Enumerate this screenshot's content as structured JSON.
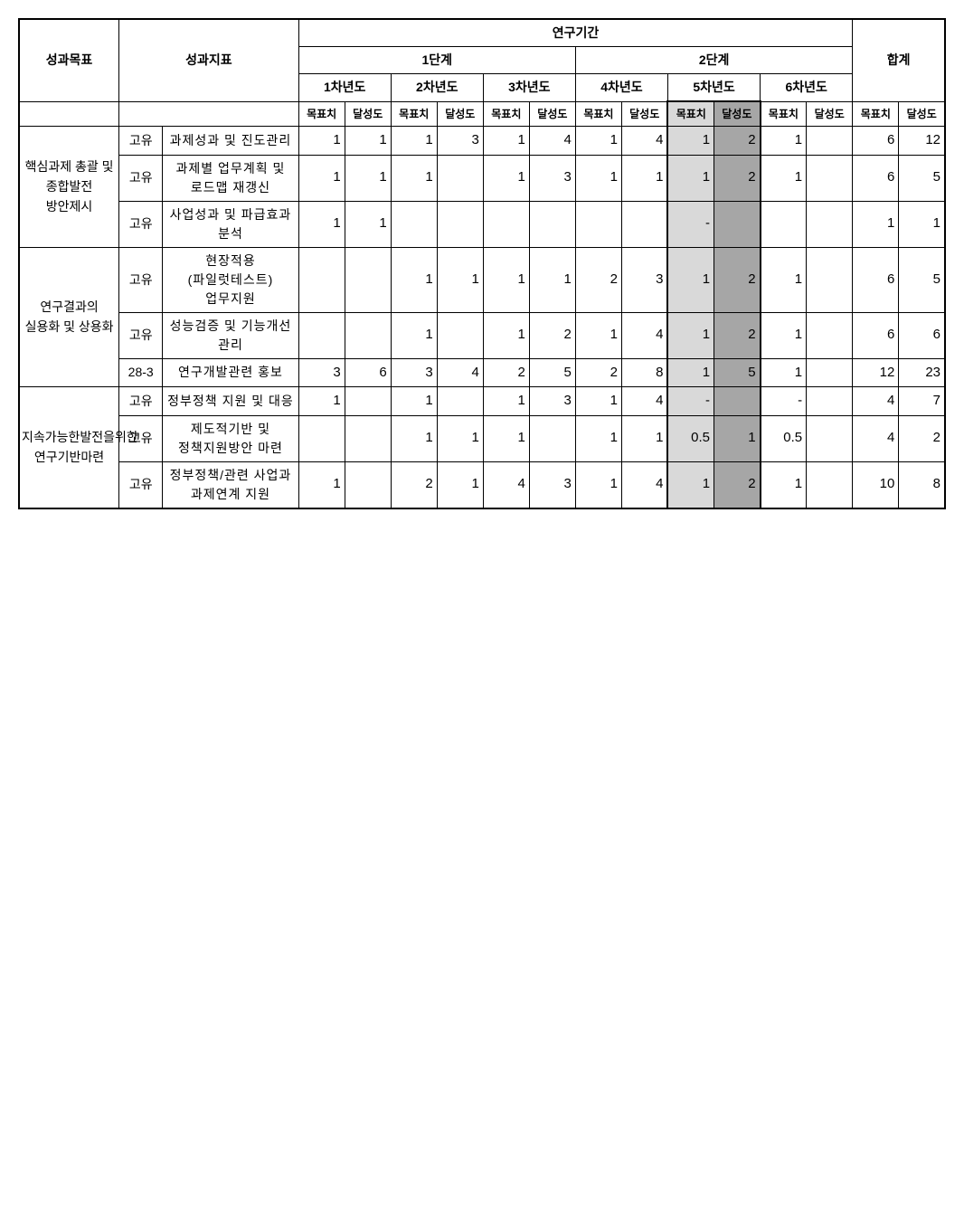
{
  "headers": {
    "goal": "성과목표",
    "indicator": "성과지표",
    "period": "연구기간",
    "phase1": "1단계",
    "phase2": "2단계",
    "total": "합계",
    "y1": "1차년도",
    "y2": "2차년도",
    "y3": "3차년도",
    "y4": "4차년도",
    "y5": "5차년도",
    "y6": "6차년도",
    "target": "목표치",
    "achieve": "달성도"
  },
  "goals": {
    "g1": "핵심과제 총괄 및 종합발전 방안제시",
    "g2": "연구결과의 실용화 및 상용화",
    "g3": "지속가능한발전을위한 연구기반마련"
  },
  "types": {
    "own": "고유",
    "code283": "28-3"
  },
  "indicators": {
    "i1": "과제성과 및 진도관리",
    "i2": "과제별 업무계획 및 로드맵 재갱신",
    "i3": "사업성과 및 파급효과 분석",
    "i4": "현장적용 (파일럿테스트) 업무지원",
    "i5": "성능검증 및 기능개선 관리",
    "i6": "연구개발관련 홍보",
    "i7": "정부정책 지원 및 대응",
    "i8": "제도적기반 및 정책지원방안 마련",
    "i9": "정부정책/관련 사업과 과제연계 지원"
  },
  "rows": {
    "r1": {
      "y1t": "1",
      "y1a": "1",
      "y2t": "1",
      "y2a": "3",
      "y3t": "1",
      "y3a": "4",
      "y4t": "1",
      "y4a": "4",
      "y5t": "1",
      "y5a": "2",
      "y6t": "1",
      "y6a": "",
      "tt": "6",
      "ta": "12"
    },
    "r2": {
      "y1t": "1",
      "y1a": "1",
      "y2t": "1",
      "y2a": "",
      "y3t": "1",
      "y3a": "3",
      "y4t": "1",
      "y4a": "1",
      "y5t": "1",
      "y5a": "2",
      "y6t": "1",
      "y6a": "",
      "tt": "6",
      "ta": "5"
    },
    "r3": {
      "y1t": "1",
      "y1a": "1",
      "y2t": "",
      "y2a": "",
      "y3t": "",
      "y3a": "",
      "y4t": "",
      "y4a": "",
      "y5t": "-",
      "y5a": "",
      "y6t": "",
      "y6a": "",
      "tt": "1",
      "ta": "1"
    },
    "r4": {
      "y1t": "",
      "y1a": "",
      "y2t": "1",
      "y2a": "1",
      "y3t": "1",
      "y3a": "1",
      "y4t": "2",
      "y4a": "3",
      "y5t": "1",
      "y5a": "2",
      "y6t": "1",
      "y6a": "",
      "tt": "6",
      "ta": "5"
    },
    "r5": {
      "y1t": "",
      "y1a": "",
      "y2t": "1",
      "y2a": "",
      "y3t": "1",
      "y3a": "2",
      "y4t": "1",
      "y4a": "4",
      "y5t": "1",
      "y5a": "2",
      "y6t": "1",
      "y6a": "",
      "tt": "6",
      "ta": "6"
    },
    "r6": {
      "y1t": "3",
      "y1a": "6",
      "y2t": "3",
      "y2a": "4",
      "y3t": "2",
      "y3a": "5",
      "y4t": "2",
      "y4a": "8",
      "y5t": "1",
      "y5a": "5",
      "y6t": "1",
      "y6a": "",
      "tt": "12",
      "ta": "23"
    },
    "r7": {
      "y1t": "1",
      "y1a": "",
      "y2t": "1",
      "y2a": "",
      "y3t": "1",
      "y3a": "3",
      "y4t": "1",
      "y4a": "4",
      "y5t": "-",
      "y5a": "",
      "y6t": "-",
      "y6a": "",
      "tt": "4",
      "ta": "7"
    },
    "r8": {
      "y1t": "",
      "y1a": "",
      "y2t": "1",
      "y2a": "1",
      "y3t": "1",
      "y3a": "",
      "y4t": "1",
      "y4a": "1",
      "y5t": "0.5",
      "y5a": "1",
      "y6t": "0.5",
      "y6a": "",
      "tt": "4",
      "ta": "2"
    },
    "r9": {
      "y1t": "1",
      "y1a": "",
      "y2t": "2",
      "y2a": "1",
      "y3t": "4",
      "y3a": "3",
      "y4t": "1",
      "y4a": "4",
      "y5t": "1",
      "y5a": "2",
      "y6t": "1",
      "y6a": "",
      "tt": "10",
      "ta": "8"
    }
  },
  "colors": {
    "hl_light": "#d9d9d9",
    "hl_dark": "#a6a6a6",
    "border": "#000000",
    "bg": "#ffffff"
  }
}
